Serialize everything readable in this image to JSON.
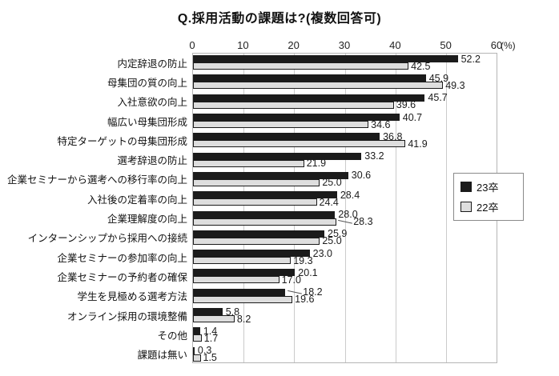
{
  "chart_data": {
    "type": "bar",
    "orientation": "horizontal",
    "title": "Q.採用活動の課題は?(複数回答可)",
    "unit_label": "(%)",
    "xlim": [
      0,
      60
    ],
    "x_ticks": [
      0,
      10,
      20,
      30,
      40,
      50,
      60
    ],
    "grid": true,
    "legend_position": "right-middle",
    "categories": [
      "内定辞退の防止",
      "母集団の質の向上",
      "入社意欲の向上",
      "幅広い母集団形成",
      "特定ターゲットの母集団形成",
      "選考辞退の防止",
      "企業セミナーから選考への移行率の向上",
      "入社後の定着率の向上",
      "企業理解度の向上",
      "インターンシップから採用への接続",
      "企業セミナーの参加率の向上",
      "企業セミナーの予約者の確保",
      "学生を見極める選考方法",
      "オンライン採用の環境整備",
      "その他",
      "課題は無い"
    ],
    "series": [
      {
        "name": "23卒",
        "color": "#1b1b1b",
        "values": [
          52.2,
          45.9,
          45.7,
          40.7,
          36.8,
          33.2,
          30.6,
          28.4,
          28.0,
          25.9,
          23.0,
          20.1,
          18.2,
          5.8,
          1.4,
          0.3
        ]
      },
      {
        "name": "22卒",
        "color": "#dedede",
        "values": [
          42.5,
          49.3,
          39.6,
          34.6,
          41.9,
          21.9,
          25.0,
          24.4,
          28.3,
          25.0,
          19.3,
          17.0,
          19.6,
          8.2,
          1.7,
          1.5
        ]
      }
    ],
    "callouts": [
      {
        "series": 1,
        "index": 8
      },
      {
        "series": 0,
        "index": 12
      }
    ]
  },
  "colors": {
    "bar_series_0": "#1b1b1b",
    "bar_series_1": "#dedede",
    "gridline": "#cbcbcb",
    "plot_border": "#b5b5b5",
    "text": "#111111"
  }
}
